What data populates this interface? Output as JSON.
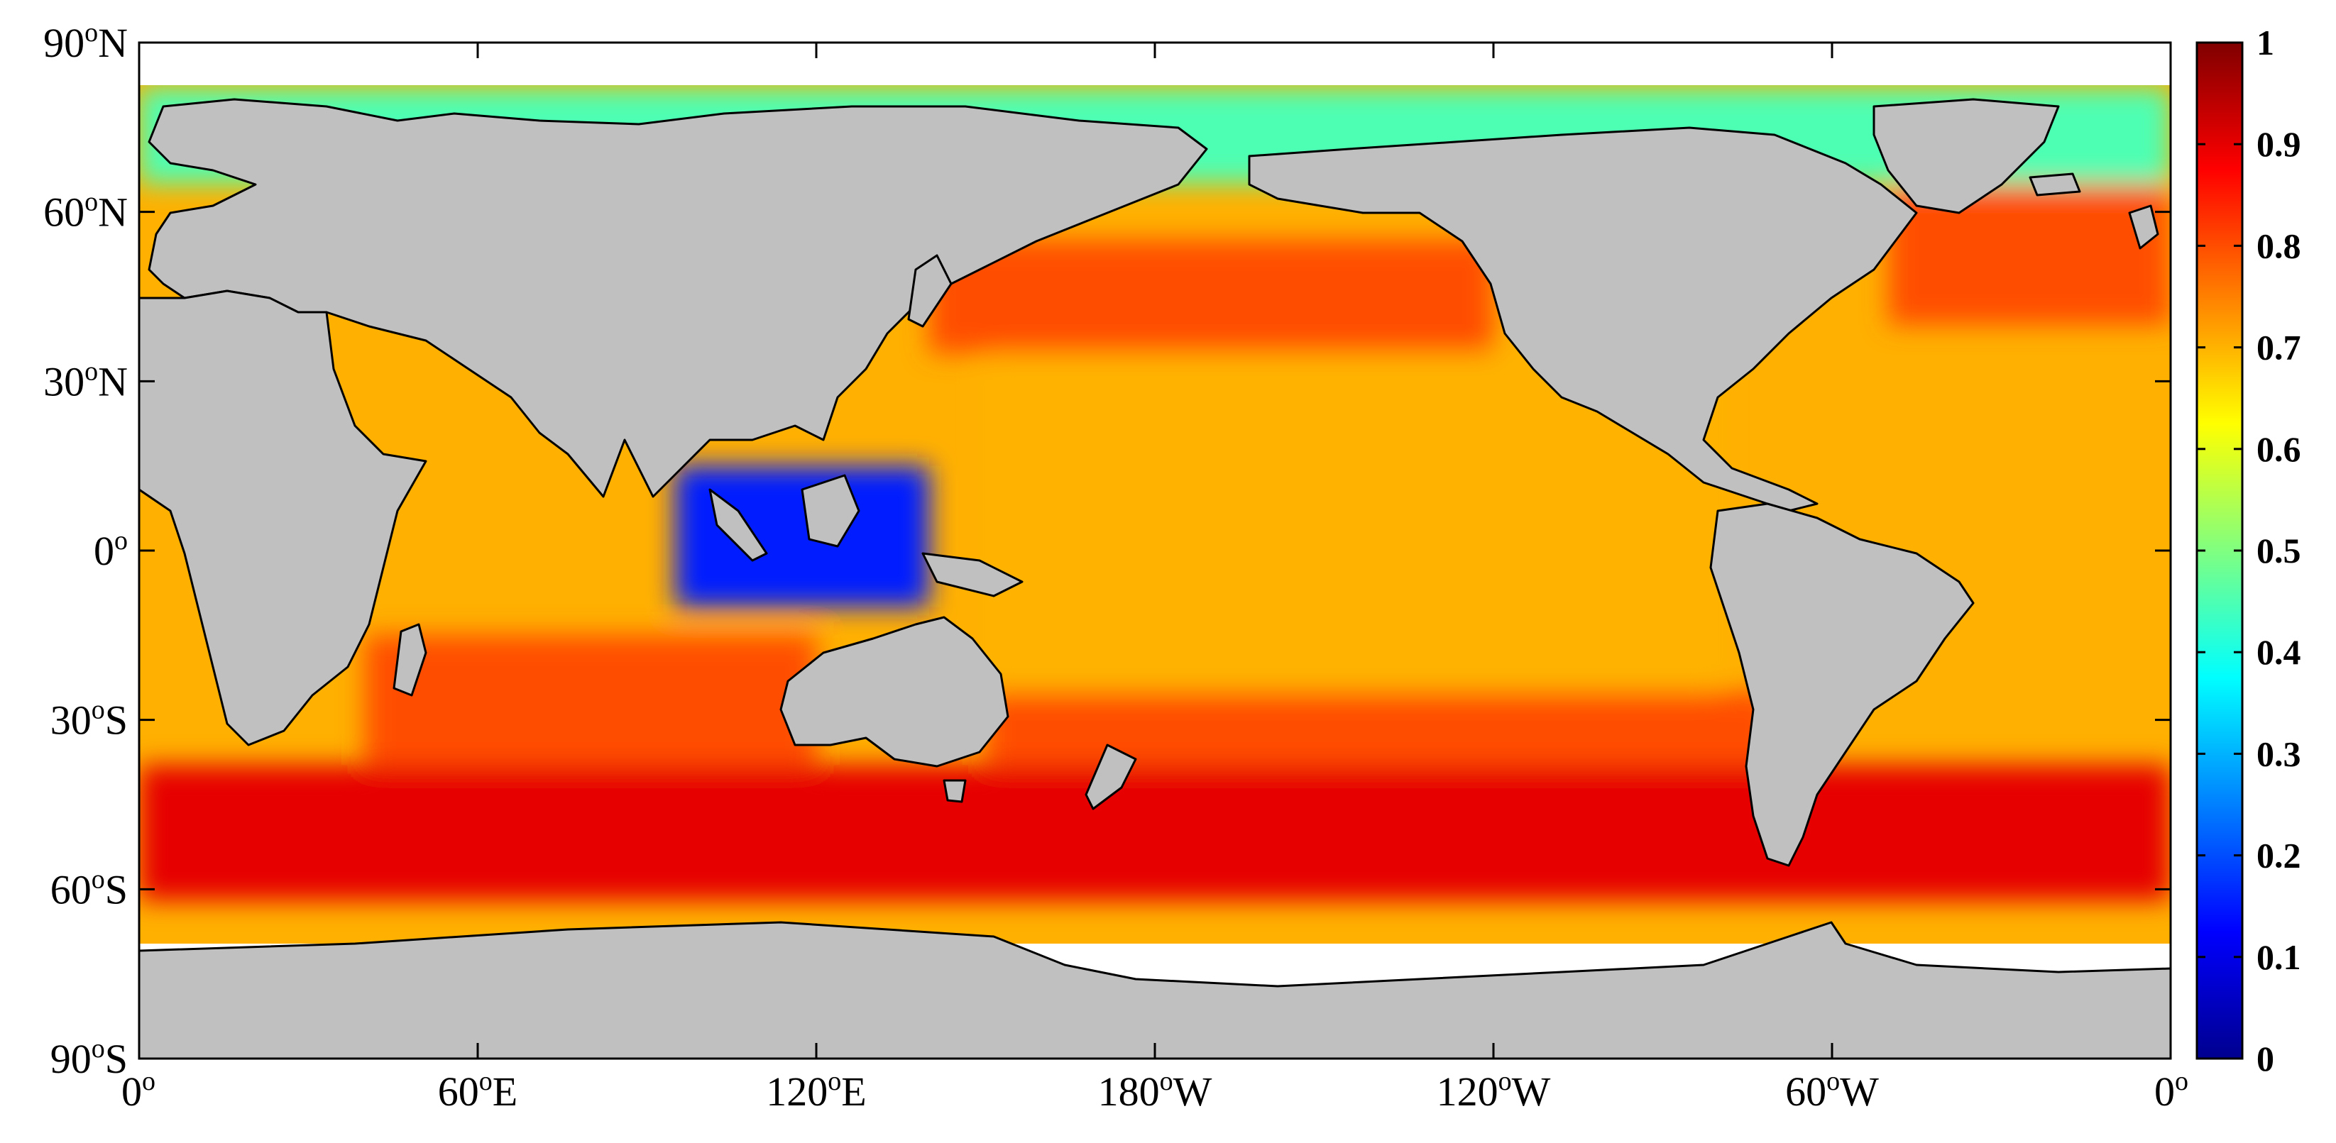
{
  "chart_data": {
    "type": "heatmap",
    "map": "global ocean field (world map, 0° to 360° longitude, 90°S to 90°N)",
    "x_ticks": [
      {
        "value": 0,
        "label": "0",
        "sup": "o",
        "suffix": ""
      },
      {
        "value": 60,
        "label": "60",
        "sup": "o",
        "suffix": "E"
      },
      {
        "value": 120,
        "label": "120",
        "sup": "o",
        "suffix": "E"
      },
      {
        "value": 180,
        "label": "180",
        "sup": "o",
        "suffix": "W"
      },
      {
        "value": 240,
        "label": "120",
        "sup": "o",
        "suffix": "W"
      },
      {
        "value": 300,
        "label": "60",
        "sup": "o",
        "suffix": "W"
      },
      {
        "value": 360,
        "label": "0",
        "sup": "o",
        "suffix": ""
      }
    ],
    "y_ticks": [
      {
        "value": 90,
        "label": "90",
        "sup": "o",
        "suffix": "N"
      },
      {
        "value": 60,
        "label": "60",
        "sup": "o",
        "suffix": "N"
      },
      {
        "value": 30,
        "label": "30",
        "sup": "o",
        "suffix": "N"
      },
      {
        "value": 0,
        "label": "0",
        "sup": "o",
        "suffix": ""
      },
      {
        "value": -30,
        "label": "30",
        "sup": "o",
        "suffix": "S"
      },
      {
        "value": -60,
        "label": "60",
        "sup": "o",
        "suffix": "S"
      },
      {
        "value": -90,
        "label": "90",
        "sup": "o",
        "suffix": "S"
      }
    ],
    "xlim": [
      0,
      360
    ],
    "ylim": [
      -90,
      90
    ],
    "colorbar": {
      "range": [
        0,
        1
      ],
      "ticks": [
        {
          "value": 0,
          "label": "0"
        },
        {
          "value": 0.1,
          "label": "0.1"
        },
        {
          "value": 0.2,
          "label": "0.2"
        },
        {
          "value": 0.3,
          "label": "0.3"
        },
        {
          "value": 0.4,
          "label": "0.4"
        },
        {
          "value": 0.5,
          "label": "0.5"
        },
        {
          "value": 0.6,
          "label": "0.6"
        },
        {
          "value": 0.7,
          "label": "0.7"
        },
        {
          "value": 0.8,
          "label": "0.8"
        },
        {
          "value": 0.9,
          "label": "0.9"
        },
        {
          "value": 1,
          "label": "1"
        }
      ],
      "colormap": "jet",
      "colors": [
        "#00008f",
        "#0000ff",
        "#0080ff",
        "#00ffff",
        "#80ff80",
        "#ffff00",
        "#ff8000",
        "#ff0000",
        "#800000"
      ]
    },
    "land_color": "#c0c0c0",
    "nodata_color": "#ffffff",
    "regions": [
      {
        "name": "Southern Ocean band",
        "lon": [
          0,
          360
        ],
        "lat": [
          -62,
          -38
        ],
        "value": 0.9
      },
      {
        "name": "South Indian gyre",
        "lon": [
          40,
          120
        ],
        "lat": [
          -38,
          -15
        ],
        "value": 0.8
      },
      {
        "name": "South Pacific",
        "lon": [
          150,
          290
        ],
        "lat": [
          -38,
          -25
        ],
        "value": 0.8
      },
      {
        "name": "North Pacific",
        "lon": [
          140,
          240
        ],
        "lat": [
          35,
          55
        ],
        "value": 0.8
      },
      {
        "name": "North Atlantic",
        "lon": [
          310,
          360
        ],
        "lat": [
          40,
          65
        ],
        "value": 0.8
      },
      {
        "name": "Central Pacific",
        "lon": [
          150,
          280
        ],
        "lat": [
          -25,
          35
        ],
        "value": 0.7
      },
      {
        "name": "Maritime Continent",
        "lon": [
          95,
          140
        ],
        "lat": [
          -10,
          15
        ],
        "value": 0.15
      },
      {
        "name": "Arctic margins",
        "lon": [
          0,
          360
        ],
        "lat": [
          65,
          82
        ],
        "value": 0.45
      }
    ]
  }
}
